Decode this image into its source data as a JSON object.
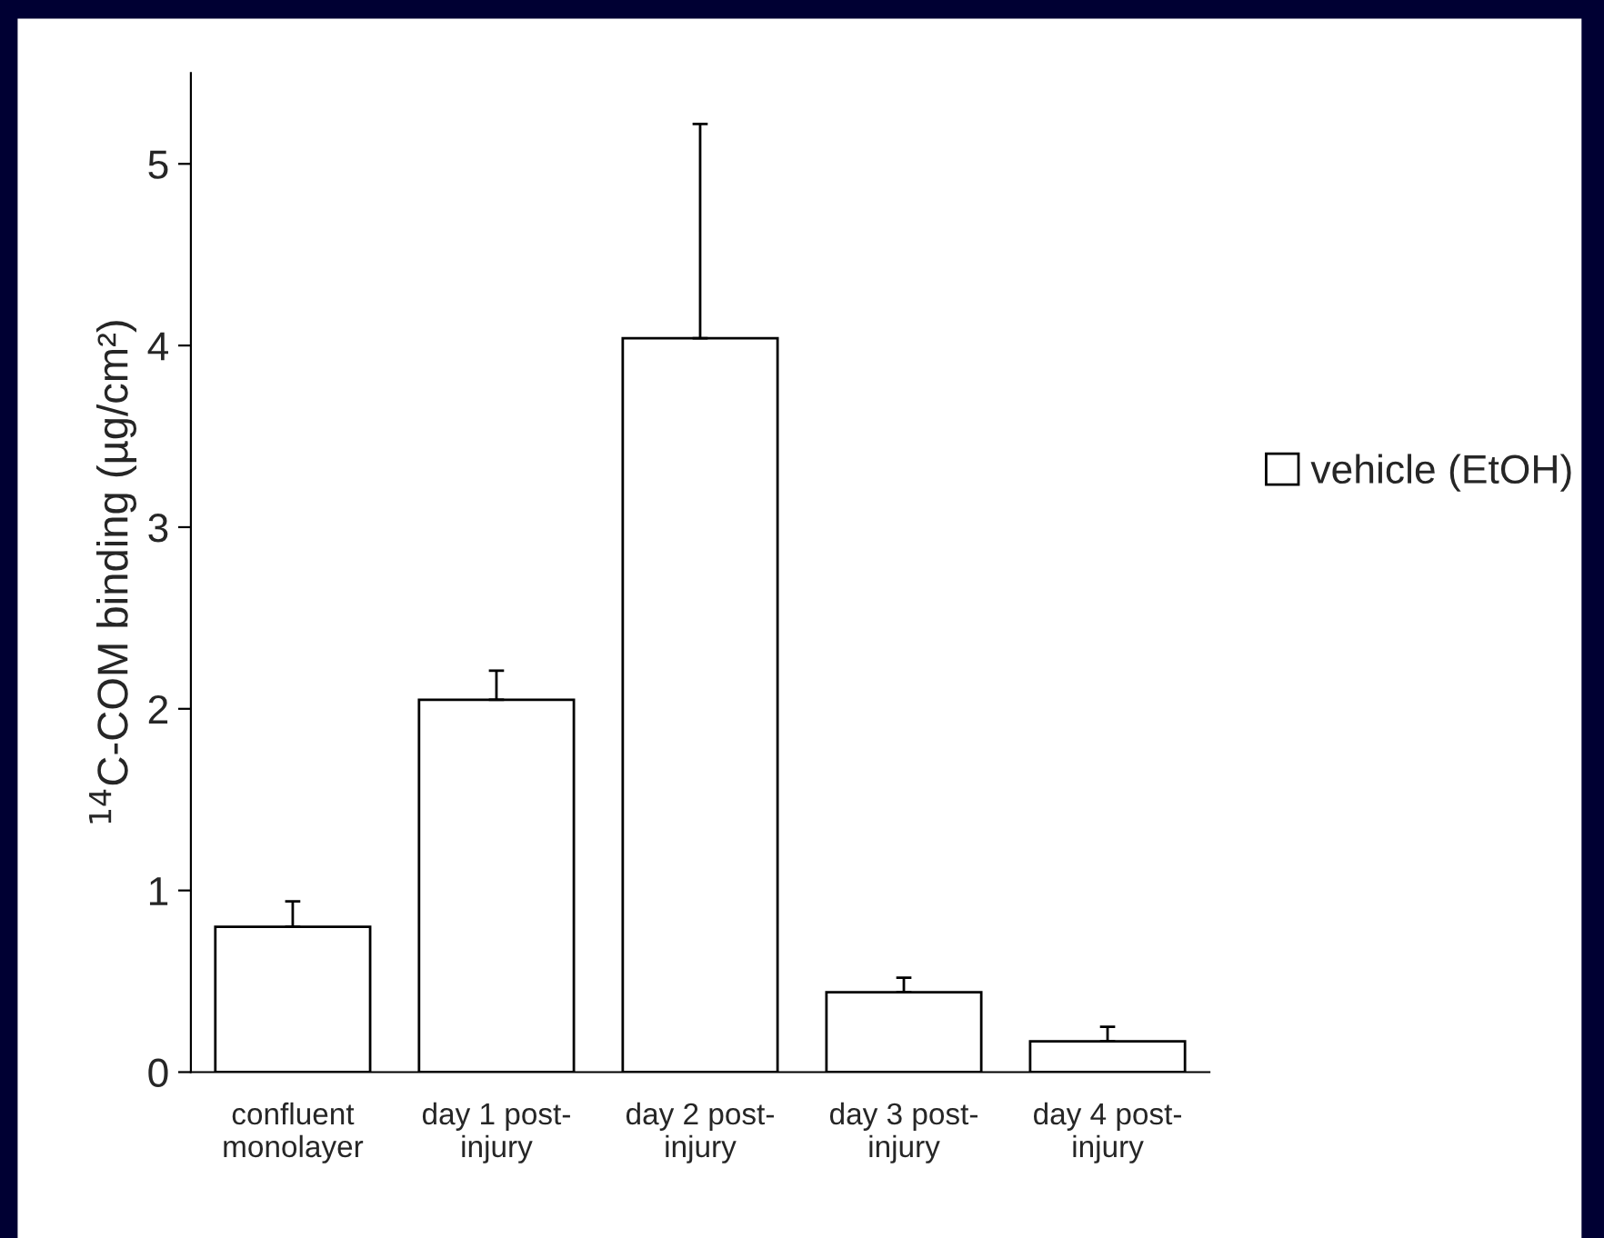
{
  "chart_data": {
    "type": "bar",
    "ylabel": "$^{14}$C-COM binding (µg/cm²)",
    "categories": [
      "confluent\nmonolayer",
      "day 1 post-\ninjury",
      "day 2 post-\ninjury",
      "day 3 post-\ninjury",
      "day 4 post-\ninjury"
    ],
    "series": [
      {
        "name": "vehicle (EtOH)",
        "color": "#ffffff",
        "values": [
          0.8,
          2.05,
          4.04,
          0.44,
          0.17
        ],
        "errors": [
          [
            0.8,
            0.94
          ],
          [
            2.05,
            2.21
          ],
          [
            4.04,
            5.22
          ],
          [
            0.44,
            0.52
          ],
          [
            0.17,
            0.25
          ]
        ]
      }
    ],
    "ylim": [
      0,
      5.5
    ],
    "yticks": [
      0,
      1,
      2,
      3,
      4,
      5
    ],
    "grid": false,
    "legend": "right"
  }
}
